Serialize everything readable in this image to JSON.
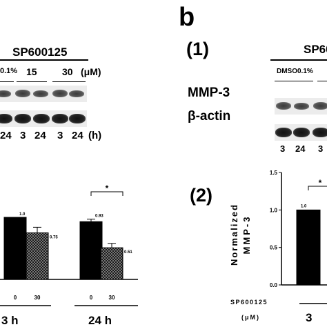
{
  "left_panel": {
    "treatment_label": "SP600125",
    "dose_labels": [
      "0.1%",
      "15",
      "30",
      "(μM)"
    ],
    "time_labels": [
      "24",
      "3",
      "24",
      "3",
      "24",
      "(h)"
    ],
    "chart_data": {
      "type": "bar",
      "categories": [
        "3 h / 0",
        "3 h / 30",
        "24 h / 0",
        "24 h / 30"
      ],
      "x_tick_labels": [
        "0",
        "30",
        "0",
        "30"
      ],
      "group_labels": [
        "3 h",
        "24 h"
      ],
      "values": [
        1.0,
        0.75,
        0.93,
        0.51
      ],
      "data_labels": [
        "1.0",
        "0.75",
        "0.93",
        "0.51"
      ],
      "significance": "*",
      "ylim": [
        0,
        1.5
      ]
    }
  },
  "right_panel": {
    "panel_letter": "b",
    "sub1_label": "(1)",
    "sub2_label": "(2)",
    "treatment_label": "SP60",
    "dmso_label": "DMSO0.1%",
    "row_labels": [
      "MMP-3",
      "β-actin"
    ],
    "time_labels": [
      "3",
      "24",
      "3"
    ],
    "chart_data": {
      "type": "bar",
      "ylabel_line1": "Normalized",
      "ylabel_line2": "MMP-3",
      "yticks": [
        "0.0",
        "0.5",
        "1.0",
        "1.5"
      ],
      "ylim": [
        0,
        1.5
      ],
      "values": [
        1.0
      ],
      "data_labels": [
        "1.0"
      ],
      "significance": "*",
      "xaxis_label_line1": "SP600125",
      "xaxis_label_line2": "(μM)",
      "group_labels": [
        "3"
      ]
    }
  },
  "colors": {
    "solid_bar": "#000000",
    "hatched_bar": "#333333",
    "blot_bg": "#ececec"
  }
}
